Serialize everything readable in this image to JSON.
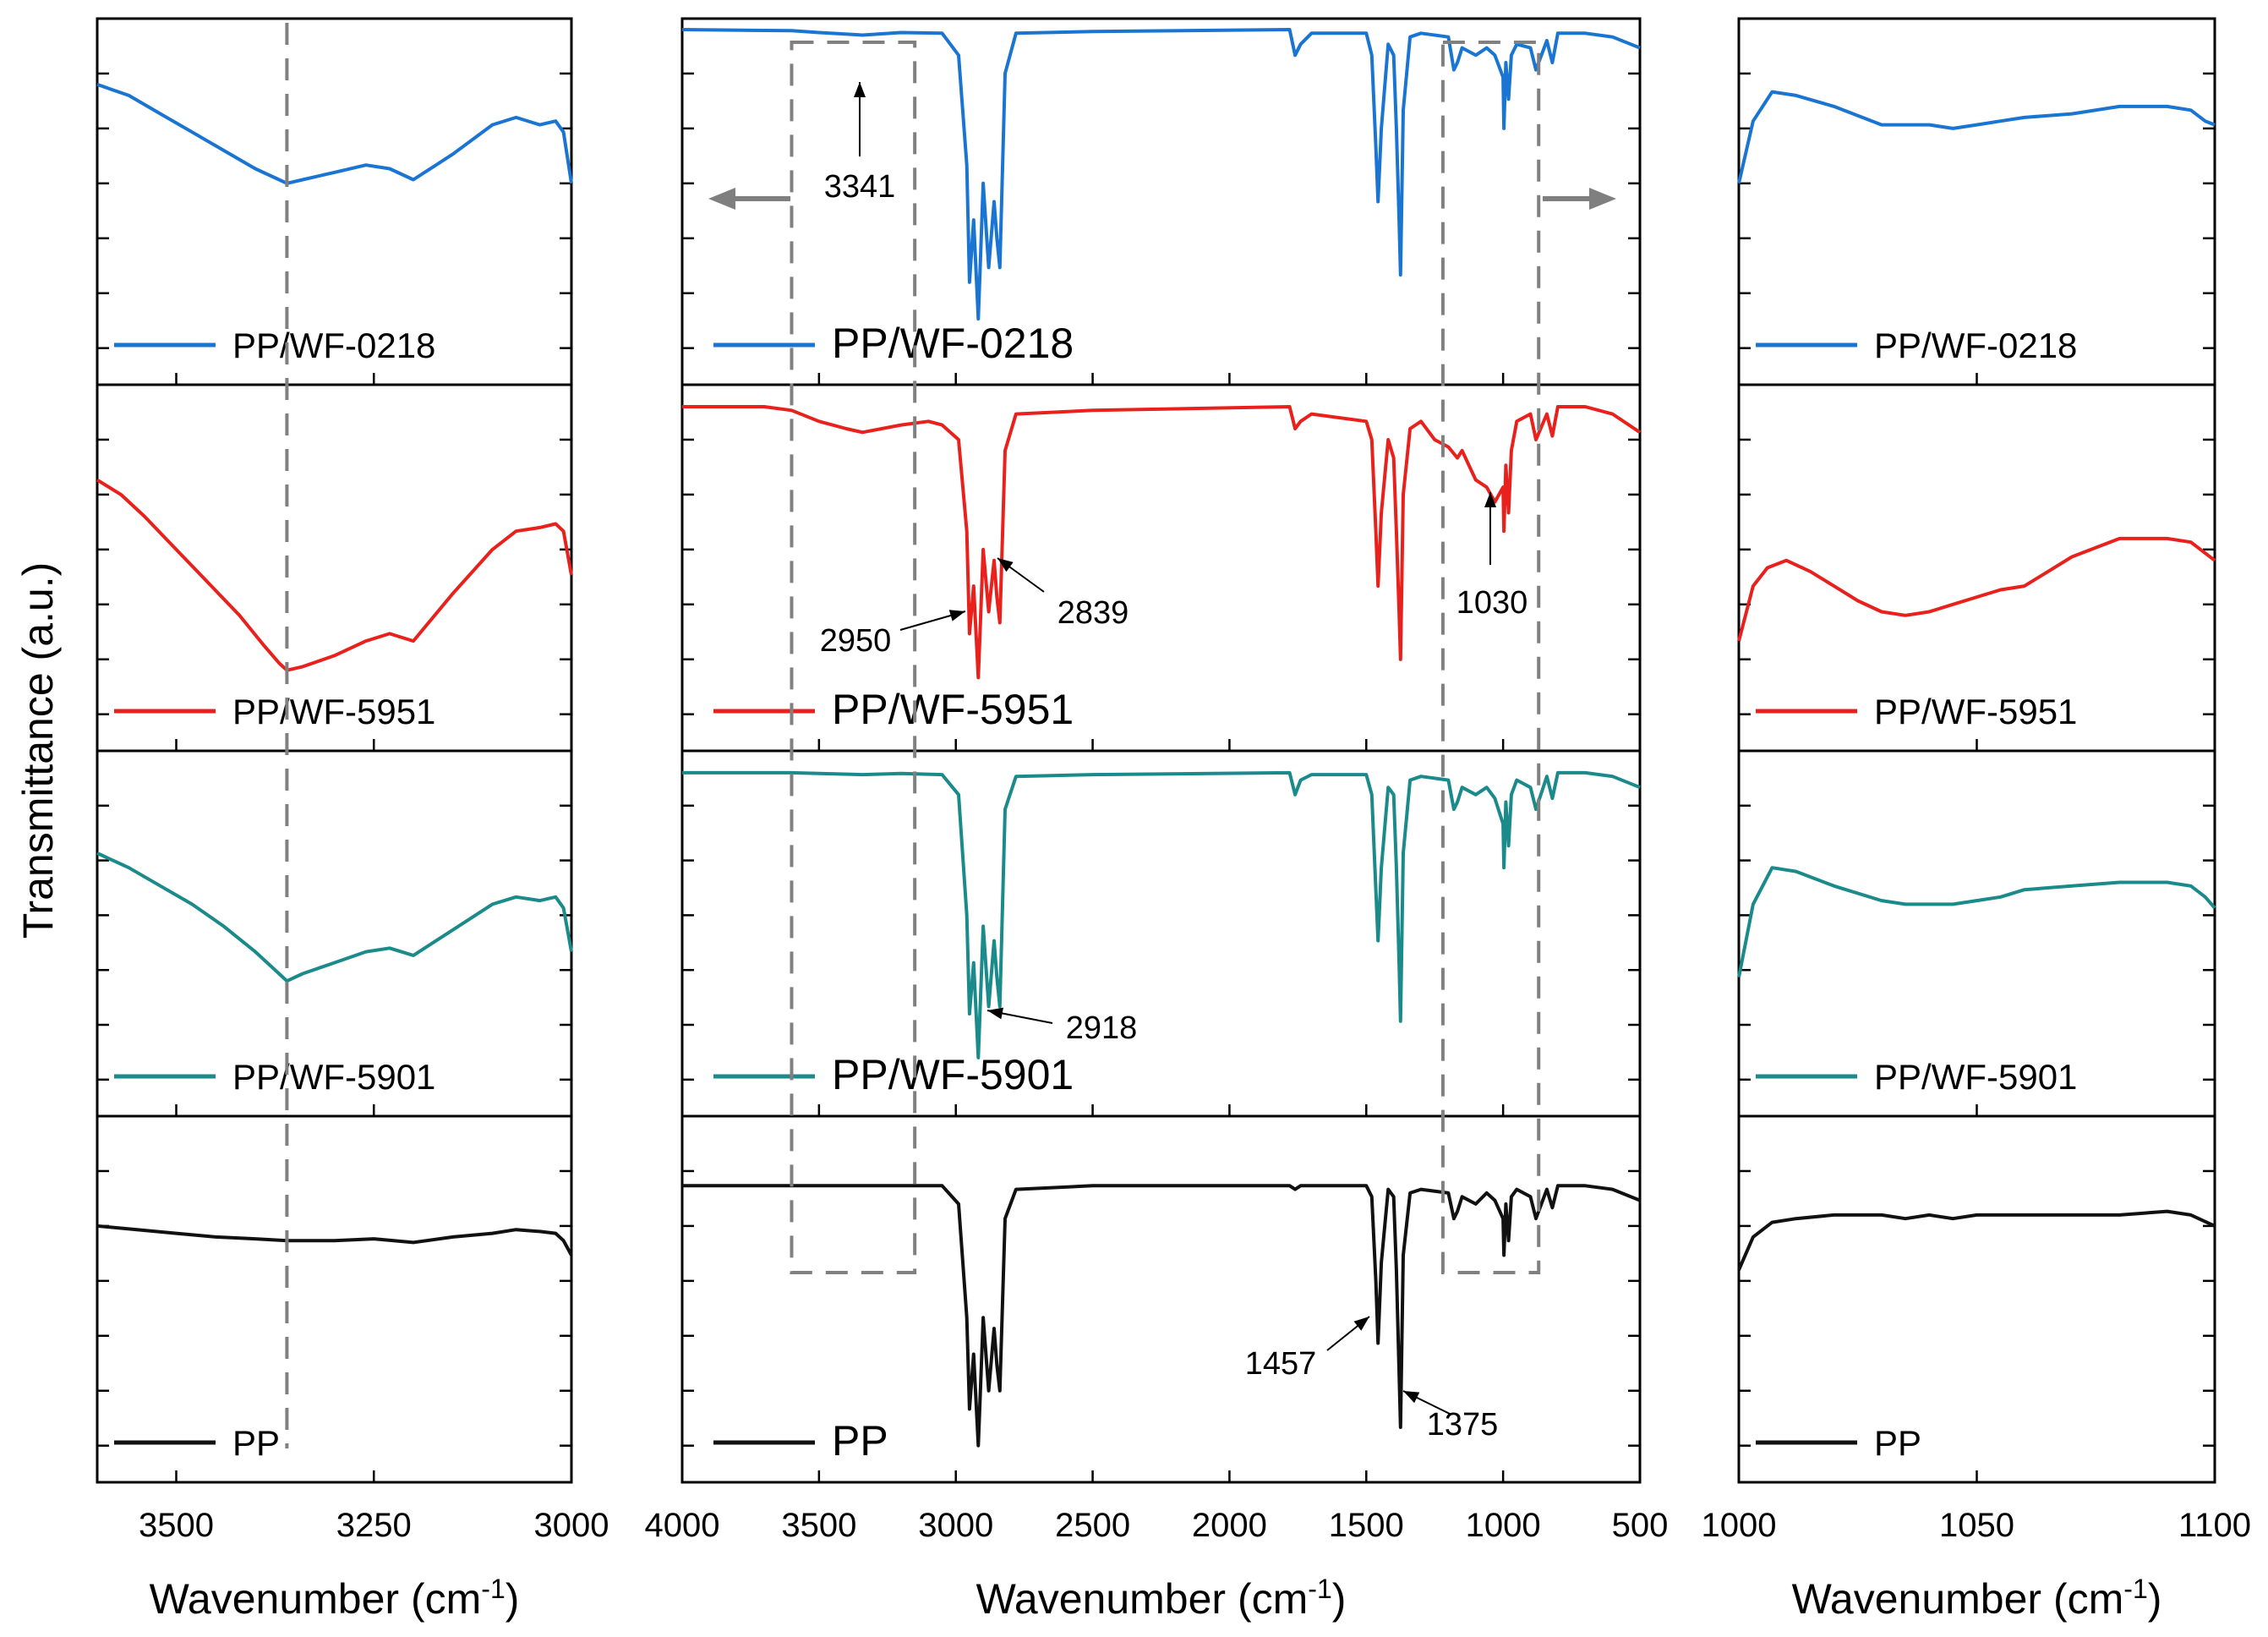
{
  "figure": {
    "ylabel": "Transmittance (a.u.)",
    "legend_position": "bottom-left of each panel"
  },
  "chart_data": [
    {
      "name": "left-panels",
      "type": "line",
      "xlabel": "Wavenumber (cm",
      "xlabel_sup": "-1",
      "xlabel_close": ")",
      "xlim": [
        3600,
        3000
      ],
      "reversed_x": true,
      "ticks": [
        3500,
        3250,
        3000
      ],
      "tick_labels": [
        "3500",
        "3250",
        "3000"
      ],
      "ylim": [
        0,
        1
      ],
      "y_tick_labels_shown": false,
      "reference_line": 3360,
      "series": [
        {
          "name": "PP/WF-0218",
          "color": "#1a75d2",
          "x": [
            3600,
            3560,
            3520,
            3480,
            3440,
            3400,
            3370,
            3360,
            3340,
            3300,
            3260,
            3230,
            3200,
            3150,
            3100,
            3070,
            3040,
            3020,
            3010,
            3000
          ],
          "y": [
            0.82,
            0.79,
            0.74,
            0.69,
            0.64,
            0.59,
            0.56,
            0.55,
            0.56,
            0.58,
            0.6,
            0.59,
            0.56,
            0.63,
            0.71,
            0.73,
            0.71,
            0.72,
            0.69,
            0.55
          ]
        },
        {
          "name": "PP/WF-5951",
          "color": "#e8211c",
          "x": [
            3600,
            3570,
            3540,
            3500,
            3460,
            3420,
            3390,
            3370,
            3360,
            3340,
            3300,
            3260,
            3230,
            3200,
            3150,
            3100,
            3070,
            3040,
            3020,
            3010,
            3000
          ],
          "y": [
            0.74,
            0.7,
            0.64,
            0.55,
            0.46,
            0.37,
            0.29,
            0.24,
            0.22,
            0.23,
            0.26,
            0.3,
            0.32,
            0.3,
            0.43,
            0.55,
            0.6,
            0.61,
            0.62,
            0.6,
            0.48
          ]
        },
        {
          "name": "PP/WF-5901",
          "color": "#1a8a8a",
          "x": [
            3600,
            3560,
            3520,
            3480,
            3440,
            3400,
            3370,
            3360,
            3340,
            3300,
            3260,
            3230,
            3200,
            3150,
            3100,
            3070,
            3040,
            3020,
            3010,
            3000
          ],
          "y": [
            0.72,
            0.68,
            0.63,
            0.58,
            0.52,
            0.45,
            0.39,
            0.37,
            0.39,
            0.42,
            0.45,
            0.46,
            0.44,
            0.51,
            0.58,
            0.6,
            0.59,
            0.6,
            0.57,
            0.45
          ]
        },
        {
          "name": "PP",
          "color": "#111111",
          "x": [
            3600,
            3550,
            3500,
            3450,
            3400,
            3360,
            3300,
            3250,
            3200,
            3150,
            3100,
            3070,
            3040,
            3020,
            3010,
            3000
          ],
          "y": [
            0.7,
            0.69,
            0.68,
            0.67,
            0.665,
            0.66,
            0.66,
            0.665,
            0.655,
            0.67,
            0.68,
            0.69,
            0.685,
            0.68,
            0.66,
            0.62
          ]
        }
      ]
    },
    {
      "name": "center-panels",
      "type": "line",
      "xlabel": "Wavenumber (cm",
      "xlabel_sup": "-1",
      "xlabel_close": ")",
      "xlim": [
        4000,
        500
      ],
      "reversed_x": true,
      "ticks": [
        4000,
        3500,
        3000,
        2500,
        2000,
        1500,
        1000,
        500
      ],
      "tick_labels": [
        "4000",
        "3500",
        "3000",
        "2500",
        "2000",
        "1500",
        "1000",
        "500"
      ],
      "ylim": [
        0,
        1
      ],
      "y_tick_labels_shown": false,
      "highlight_boxes": [
        [
          3600,
          3150
        ],
        [
          1220,
          870
        ]
      ],
      "series": [
        {
          "name": "PP/WF-0218",
          "color": "#1a75d2",
          "x": [
            4000,
            3600,
            3500,
            3341,
            3200,
            3050,
            2990,
            2960,
            2950,
            2935,
            2918,
            2900,
            2880,
            2860,
            2850,
            2839,
            2820,
            2780,
            2500,
            1780,
            1760,
            1740,
            1700,
            1500,
            1480,
            1465,
            1457,
            1445,
            1420,
            1400,
            1390,
            1380,
            1375,
            1365,
            1340,
            1300,
            1200,
            1180,
            1167,
            1150,
            1100,
            1060,
            1030,
            1000,
            997,
            990,
            980,
            970,
            950,
            900,
            880,
            840,
            820,
            800,
            700,
            600,
            500
          ],
          "y": [
            0.97,
            0.967,
            0.962,
            0.955,
            0.962,
            0.96,
            0.9,
            0.6,
            0.28,
            0.45,
            0.18,
            0.55,
            0.32,
            0.5,
            0.4,
            0.32,
            0.85,
            0.96,
            0.965,
            0.97,
            0.9,
            0.93,
            0.96,
            0.96,
            0.9,
            0.65,
            0.5,
            0.7,
            0.93,
            0.9,
            0.7,
            0.45,
            0.3,
            0.75,
            0.95,
            0.96,
            0.95,
            0.86,
            0.88,
            0.92,
            0.9,
            0.92,
            0.9,
            0.84,
            0.7,
            0.88,
            0.78,
            0.9,
            0.93,
            0.92,
            0.86,
            0.94,
            0.88,
            0.96,
            0.96,
            0.95,
            0.92
          ]
        },
        {
          "name": "PP/WF-5951",
          "color": "#e8211c",
          "x": [
            4000,
            3700,
            3600,
            3500,
            3400,
            3341,
            3200,
            3100,
            3050,
            2990,
            2960,
            2950,
            2935,
            2918,
            2900,
            2880,
            2860,
            2850,
            2839,
            2820,
            2780,
            2500,
            1780,
            1760,
            1740,
            1700,
            1500,
            1480,
            1465,
            1457,
            1445,
            1420,
            1400,
            1390,
            1380,
            1375,
            1365,
            1340,
            1300,
            1250,
            1200,
            1167,
            1150,
            1100,
            1060,
            1030,
            1000,
            997,
            990,
            980,
            970,
            950,
            900,
            880,
            840,
            820,
            800,
            700,
            600,
            500
          ],
          "y": [
            0.94,
            0.94,
            0.93,
            0.9,
            0.88,
            0.87,
            0.89,
            0.9,
            0.89,
            0.85,
            0.6,
            0.32,
            0.45,
            0.2,
            0.55,
            0.38,
            0.52,
            0.42,
            0.35,
            0.82,
            0.92,
            0.93,
            0.94,
            0.88,
            0.9,
            0.92,
            0.9,
            0.85,
            0.6,
            0.45,
            0.65,
            0.85,
            0.8,
            0.6,
            0.38,
            0.25,
            0.7,
            0.88,
            0.9,
            0.85,
            0.83,
            0.8,
            0.82,
            0.74,
            0.72,
            0.68,
            0.72,
            0.6,
            0.78,
            0.65,
            0.82,
            0.9,
            0.92,
            0.85,
            0.92,
            0.86,
            0.94,
            0.94,
            0.92,
            0.87
          ]
        },
        {
          "name": "PP/WF-5901",
          "color": "#1a8a8a",
          "x": [
            4000,
            3600,
            3500,
            3341,
            3200,
            3050,
            2990,
            2960,
            2950,
            2935,
            2918,
            2900,
            2880,
            2860,
            2850,
            2839,
            2820,
            2780,
            2500,
            1780,
            1760,
            1740,
            1700,
            1500,
            1480,
            1465,
            1457,
            1445,
            1420,
            1400,
            1390,
            1380,
            1375,
            1365,
            1340,
            1300,
            1200,
            1180,
            1167,
            1150,
            1100,
            1060,
            1030,
            1000,
            997,
            990,
            980,
            970,
            950,
            900,
            880,
            840,
            820,
            800,
            700,
            600,
            500
          ],
          "y": [
            0.94,
            0.94,
            0.938,
            0.935,
            0.938,
            0.935,
            0.88,
            0.55,
            0.28,
            0.42,
            0.16,
            0.52,
            0.3,
            0.48,
            0.38,
            0.3,
            0.84,
            0.93,
            0.935,
            0.94,
            0.88,
            0.92,
            0.935,
            0.935,
            0.88,
            0.62,
            0.48,
            0.68,
            0.9,
            0.88,
            0.68,
            0.42,
            0.26,
            0.72,
            0.92,
            0.93,
            0.92,
            0.84,
            0.86,
            0.9,
            0.88,
            0.9,
            0.87,
            0.8,
            0.68,
            0.86,
            0.74,
            0.88,
            0.92,
            0.9,
            0.84,
            0.93,
            0.87,
            0.94,
            0.94,
            0.93,
            0.9
          ]
        },
        {
          "name": "PP",
          "color": "#111111",
          "x": [
            4000,
            3600,
            3500,
            3341,
            3200,
            3050,
            2990,
            2960,
            2950,
            2935,
            2918,
            2900,
            2880,
            2860,
            2850,
            2839,
            2820,
            2780,
            2500,
            1780,
            1760,
            1740,
            1700,
            1500,
            1480,
            1465,
            1457,
            1445,
            1420,
            1400,
            1390,
            1380,
            1375,
            1365,
            1340,
            1300,
            1200,
            1180,
            1167,
            1150,
            1100,
            1060,
            1030,
            1000,
            997,
            990,
            980,
            970,
            950,
            900,
            880,
            840,
            820,
            800,
            700,
            600,
            500
          ],
          "y": [
            0.81,
            0.81,
            0.81,
            0.81,
            0.81,
            0.81,
            0.76,
            0.45,
            0.2,
            0.35,
            0.1,
            0.45,
            0.25,
            0.42,
            0.32,
            0.25,
            0.72,
            0.8,
            0.81,
            0.81,
            0.8,
            0.81,
            0.81,
            0.81,
            0.78,
            0.55,
            0.38,
            0.6,
            0.8,
            0.78,
            0.58,
            0.3,
            0.15,
            0.62,
            0.79,
            0.8,
            0.79,
            0.72,
            0.74,
            0.78,
            0.76,
            0.79,
            0.77,
            0.72,
            0.62,
            0.76,
            0.66,
            0.78,
            0.8,
            0.78,
            0.72,
            0.8,
            0.75,
            0.81,
            0.81,
            0.8,
            0.77
          ]
        }
      ],
      "annotations": [
        {
          "panel": 0,
          "label": "3341",
          "x": 3341
        },
        {
          "panel": 1,
          "label": "2950",
          "x": 2950
        },
        {
          "panel": 1,
          "label": "2839",
          "x": 2839
        },
        {
          "panel": 1,
          "label": "1030",
          "x": 1030
        },
        {
          "panel": 2,
          "label": "2918",
          "x": 2918
        },
        {
          "panel": 3,
          "label": "1457",
          "x": 1457
        },
        {
          "panel": 3,
          "label": "1375",
          "x": 1375
        }
      ]
    },
    {
      "name": "right-panels",
      "type": "line",
      "xlabel": "Wavenumber (cm",
      "xlabel_sup": "-1",
      "xlabel_close": ")",
      "xlim": [
        1000,
        1100
      ],
      "reversed_x": false,
      "ticks": [
        1000,
        1050,
        1100
      ],
      "tick_labels": [
        "1000",
        "1050",
        "1100"
      ],
      "ylim": [
        0,
        1
      ],
      "y_tick_labels_shown": false,
      "series": [
        {
          "name": "PP/WF-0218",
          "color": "#1a75d2",
          "x": [
            1000,
            1003,
            1007,
            1012,
            1020,
            1030,
            1035,
            1040,
            1045,
            1050,
            1055,
            1060,
            1070,
            1080,
            1090,
            1095,
            1098,
            1100
          ],
          "y": [
            0.55,
            0.72,
            0.8,
            0.79,
            0.76,
            0.71,
            0.71,
            0.71,
            0.7,
            0.71,
            0.72,
            0.73,
            0.74,
            0.76,
            0.76,
            0.75,
            0.72,
            0.71
          ]
        },
        {
          "name": "PP/WF-5951",
          "color": "#e8211c",
          "x": [
            1000,
            1003,
            1006,
            1010,
            1015,
            1020,
            1025,
            1030,
            1035,
            1040,
            1045,
            1050,
            1055,
            1060,
            1070,
            1080,
            1090,
            1095,
            1100
          ],
          "y": [
            0.3,
            0.45,
            0.5,
            0.52,
            0.49,
            0.45,
            0.41,
            0.38,
            0.37,
            0.38,
            0.4,
            0.42,
            0.44,
            0.45,
            0.53,
            0.58,
            0.58,
            0.57,
            0.52
          ]
        },
        {
          "name": "PP/WF-5901",
          "color": "#1a8a8a",
          "x": [
            1000,
            1003,
            1007,
            1012,
            1020,
            1030,
            1035,
            1040,
            1045,
            1050,
            1055,
            1060,
            1070,
            1080,
            1090,
            1095,
            1098,
            1100
          ],
          "y": [
            0.38,
            0.58,
            0.68,
            0.67,
            0.63,
            0.59,
            0.58,
            0.58,
            0.58,
            0.59,
            0.6,
            0.62,
            0.63,
            0.64,
            0.64,
            0.63,
            0.6,
            0.57
          ]
        },
        {
          "name": "PP",
          "color": "#111111",
          "x": [
            1000,
            1003,
            1007,
            1012,
            1020,
            1030,
            1035,
            1040,
            1045,
            1050,
            1055,
            1060,
            1070,
            1080,
            1090,
            1095,
            1100
          ],
          "y": [
            0.58,
            0.67,
            0.71,
            0.72,
            0.73,
            0.73,
            0.72,
            0.73,
            0.72,
            0.73,
            0.73,
            0.73,
            0.73,
            0.73,
            0.74,
            0.73,
            0.7
          ]
        }
      ]
    }
  ]
}
